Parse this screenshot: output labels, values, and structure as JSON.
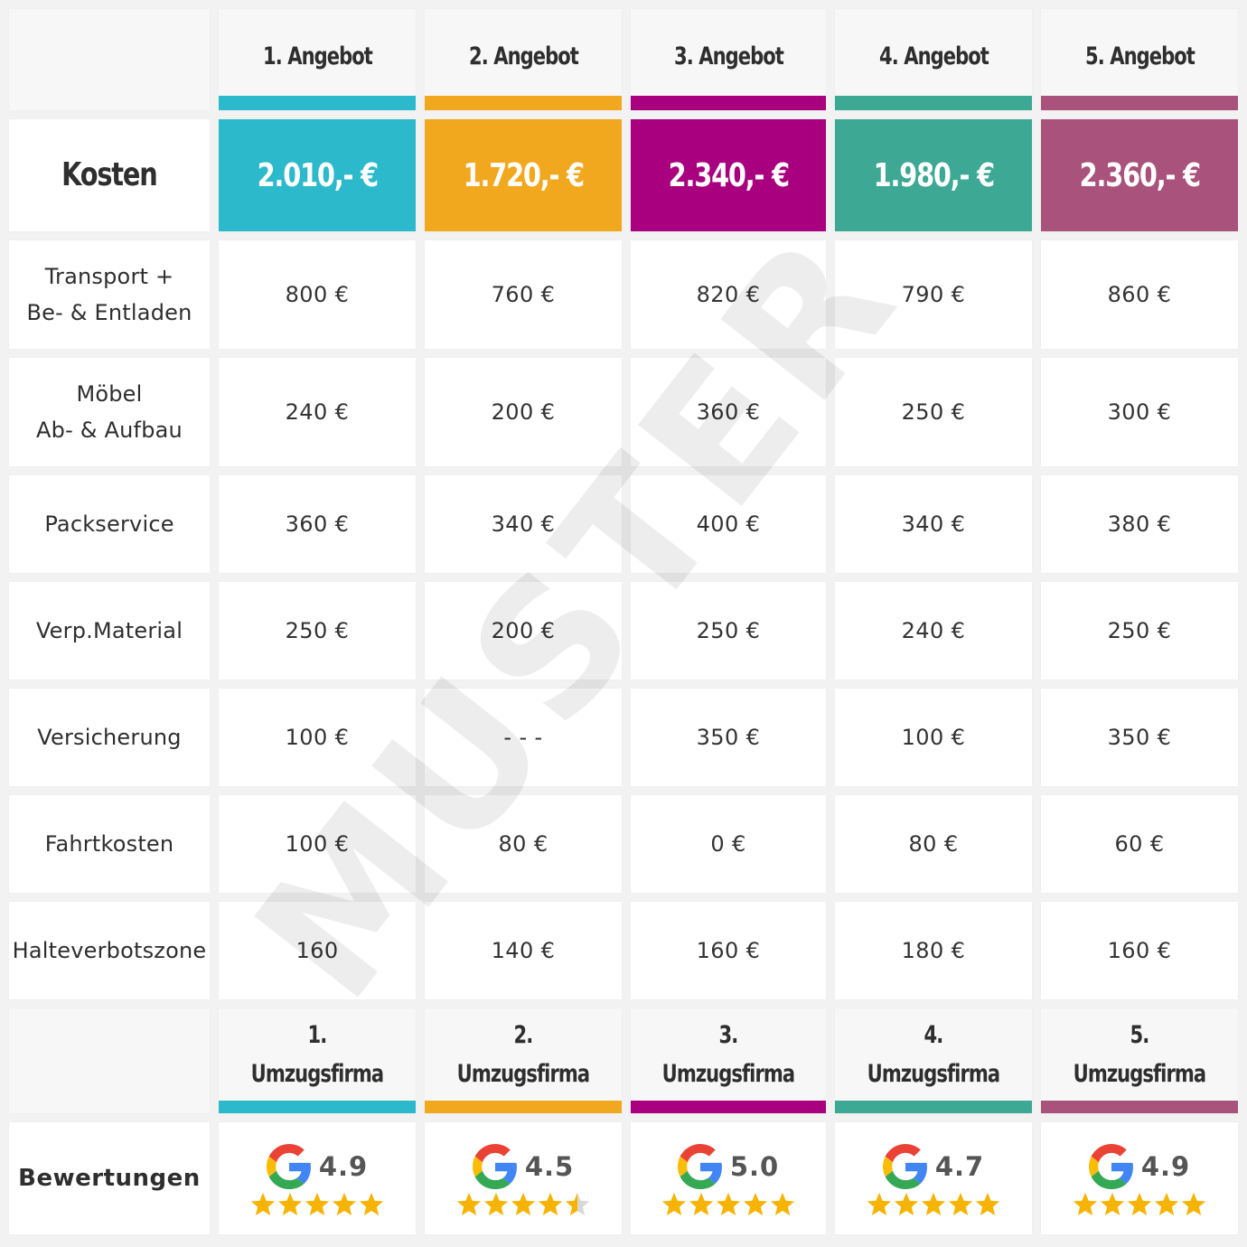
{
  "offers": [
    {
      "header": "1. Angebot",
      "color": "#2cb9cc",
      "total": "2.010,- €",
      "firm_num": "1.",
      "firm_label": "Umzugsfirma",
      "score": "4.9",
      "stars": 5
    },
    {
      "header": "2. Angebot",
      "color": "#f2a81e",
      "total": "1.720,- €",
      "firm_num": "2.",
      "firm_label": "Umzugsfirma",
      "score": "4.5",
      "stars": 4.5
    },
    {
      "header": "3. Angebot",
      "color": "#a8007f",
      "total": "2.340,- €",
      "firm_num": "3.",
      "firm_label": "Umzugsfirma",
      "score": "5.0",
      "stars": 5
    },
    {
      "header": "4. Angebot",
      "color": "#3da893",
      "total": "1.980,- €",
      "firm_num": "4.",
      "firm_label": "Umzugsfirma",
      "score": "4.7",
      "stars": 5
    },
    {
      "header": "5. Angebot",
      "color": "#a9527b",
      "total": "2.360,- €",
      "firm_num": "5.",
      "firm_label": "Umzugsfirma",
      "score": "4.9",
      "stars": 5
    }
  ],
  "labels": {
    "kosten": "Kosten",
    "bewertungen": "Bewertungen"
  },
  "rows": [
    {
      "label": [
        "Transport +",
        "Be- & Entladen"
      ],
      "values": [
        "800 €",
        "760 €",
        "820 €",
        "790 €",
        "860 €"
      ]
    },
    {
      "label": [
        "Möbel",
        "Ab- & Aufbau"
      ],
      "values": [
        "240 €",
        "200 €",
        "360 €",
        "250 €",
        "300 €"
      ]
    },
    {
      "label": [
        "Packservice"
      ],
      "values": [
        "360 €",
        "340 €",
        "400 €",
        "340 €",
        "380 €"
      ]
    },
    {
      "label": [
        "Verp.Material"
      ],
      "values": [
        "250 €",
        "200 €",
        "250 €",
        "240 €",
        "250 €"
      ]
    },
    {
      "label": [
        "Versicherung"
      ],
      "values": [
        "100 €",
        "- - -",
        "350 €",
        "100 €",
        "350 €"
      ]
    },
    {
      "label": [
        "Fahrtkosten"
      ],
      "values": [
        "100 €",
        "80 €",
        "0 €",
        "80 €",
        "60 €"
      ]
    },
    {
      "label": [
        "Halteverbotszone"
      ],
      "values": [
        "160",
        "140 €",
        "160 €",
        "180 €",
        "160 €"
      ]
    }
  ],
  "watermark": "MUSTER",
  "icons": {
    "rating_logo": "google-g-icon",
    "star": "star-icon"
  }
}
